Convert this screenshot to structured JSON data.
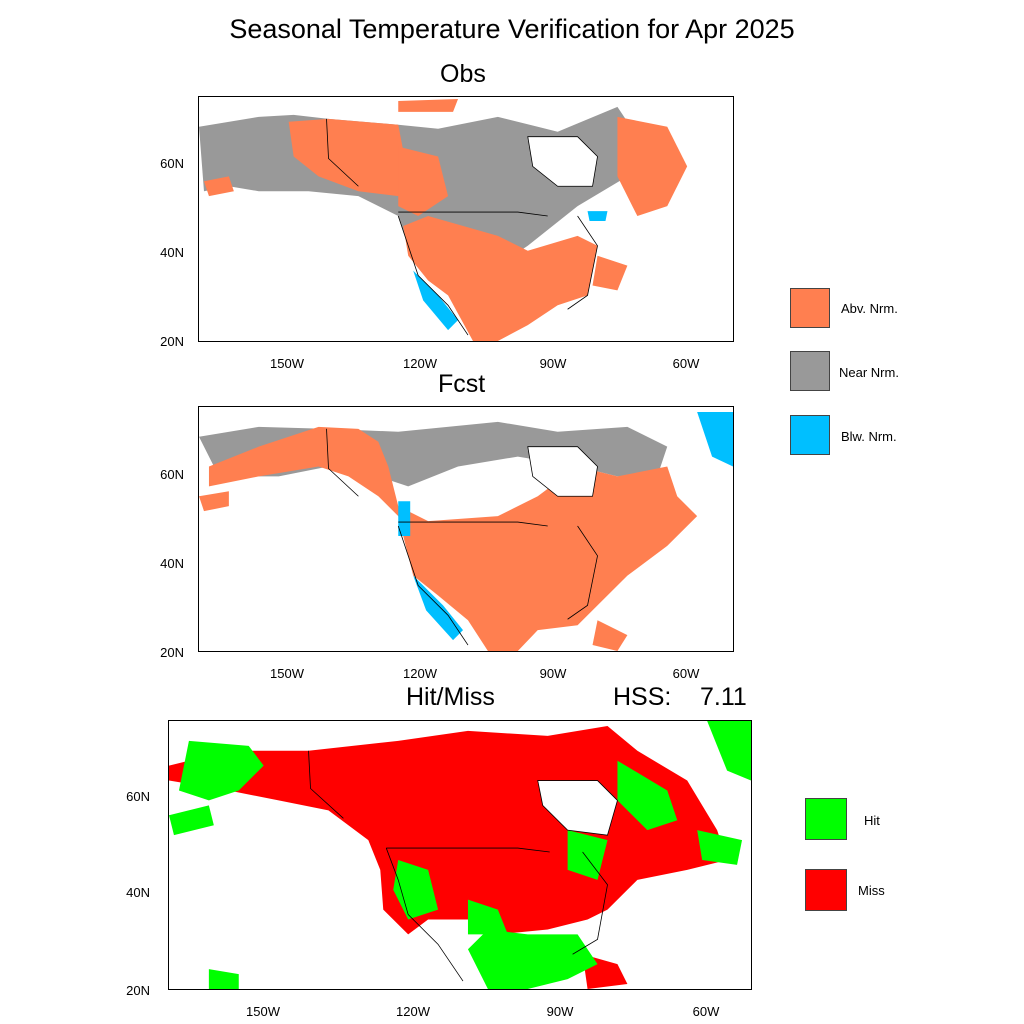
{
  "title": "Seasonal Temperature Verification for Apr 2025",
  "panels": {
    "obs": {
      "title": "Obs"
    },
    "fcst": {
      "title": "Fcst"
    },
    "hitmiss": {
      "title": "Hit/Miss",
      "score_label": "HSS:",
      "score_value": "7.11"
    }
  },
  "axes": {
    "lat_labels": [
      "60N",
      "40N",
      "20N"
    ],
    "lon_labels": [
      "150W",
      "120W",
      "90W",
      "60W"
    ]
  },
  "legend_top": [
    {
      "label": "Abv. Nrm.",
      "color": "#ff7f50"
    },
    {
      "label": "Near Nrm.",
      "color": "#999999"
    },
    {
      "label": "Blw. Nrm.",
      "color": "#00bfff"
    }
  ],
  "legend_bottom": [
    {
      "label": "Hit",
      "color": "#00ff00"
    },
    {
      "label": "Miss",
      "color": "#ff0000"
    }
  ],
  "colors": {
    "land_outline": "#000000",
    "abv": "#ff7f50",
    "near": "#999999",
    "blw": "#00bfff",
    "hit": "#00ff00",
    "miss": "#ff0000"
  }
}
